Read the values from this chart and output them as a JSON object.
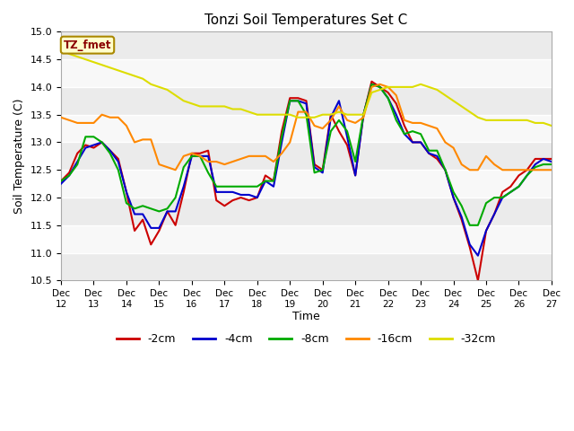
{
  "title": "Tonzi Soil Temperatures Set C",
  "xlabel": "Time",
  "ylabel": "Soil Temperature (C)",
  "ylim": [
    10.5,
    15.0
  ],
  "annotation": "TZ_fmet",
  "legend_labels": [
    "-2cm",
    "-4cm",
    "-8cm",
    "-16cm",
    "-32cm"
  ],
  "legend_colors": [
    "#cc0000",
    "#0000cc",
    "#00aa00",
    "#ff8800",
    "#dddd00"
  ],
  "bg_color": "#ffffff",
  "plot_bg_color": "#ffffff",
  "x_tick_labels": [
    "Dec 12",
    "Dec 13",
    "Dec 14",
    "Dec 15",
    "Dec 16",
    "Dec 17",
    "Dec 18",
    "Dec 19",
    "Dec 20",
    "Dec 21",
    "Dec 22",
    "Dec 23",
    "Dec 24",
    "Dec 25",
    "Dec 26",
    "Dec 27"
  ],
  "band_colors": [
    "#f0f0f0",
    "#e0e0e0"
  ],
  "series": {
    "m2cm": [
      12.3,
      12.45,
      12.8,
      12.95,
      12.9,
      13.0,
      12.85,
      12.7,
      12.1,
      11.4,
      11.6,
      11.15,
      11.4,
      11.75,
      11.5,
      12.1,
      12.8,
      12.8,
      12.85,
      11.95,
      11.85,
      11.95,
      12.0,
      11.95,
      12.0,
      12.4,
      12.3,
      13.2,
      13.8,
      13.8,
      13.75,
      12.6,
      12.5,
      13.5,
      13.2,
      12.95,
      12.4,
      13.5,
      14.1,
      14.0,
      13.9,
      13.7,
      13.3,
      13.0,
      13.0,
      12.8,
      12.7,
      12.5,
      12.0,
      11.6,
      11.1,
      10.5,
      11.4,
      11.7,
      12.1,
      12.2,
      12.4,
      12.5,
      12.7,
      12.7,
      12.7
    ],
    "m4cm": [
      12.25,
      12.4,
      12.65,
      12.9,
      12.95,
      13.0,
      12.85,
      12.65,
      12.1,
      11.7,
      11.7,
      11.45,
      11.45,
      11.75,
      11.75,
      12.2,
      12.75,
      12.75,
      12.75,
      12.1,
      12.1,
      12.1,
      12.05,
      12.05,
      12.0,
      12.3,
      12.2,
      13.0,
      13.75,
      13.75,
      13.7,
      12.55,
      12.45,
      13.45,
      13.75,
      13.1,
      12.4,
      13.5,
      14.05,
      14.0,
      13.8,
      13.5,
      13.15,
      13.0,
      13.0,
      12.8,
      12.75,
      12.5,
      12.0,
      11.65,
      11.15,
      10.95,
      11.4,
      11.7,
      12.0,
      12.1,
      12.2,
      12.4,
      12.6,
      12.7,
      12.65
    ],
    "m8cm": [
      12.3,
      12.4,
      12.6,
      13.1,
      13.1,
      13.0,
      12.8,
      12.5,
      11.9,
      11.8,
      11.85,
      11.8,
      11.75,
      11.8,
      12.0,
      12.55,
      12.75,
      12.75,
      12.45,
      12.2,
      12.2,
      12.2,
      12.2,
      12.2,
      12.2,
      12.3,
      12.3,
      13.1,
      13.75,
      13.75,
      13.5,
      12.45,
      12.5,
      13.2,
      13.4,
      13.2,
      12.65,
      13.5,
      14.05,
      14.0,
      13.8,
      13.4,
      13.15,
      13.2,
      13.15,
      12.85,
      12.85,
      12.5,
      12.1,
      11.85,
      11.5,
      11.5,
      11.9,
      12.0,
      12.0,
      12.1,
      12.2,
      12.4,
      12.55,
      12.6,
      12.6
    ],
    "m16cm": [
      13.45,
      13.4,
      13.35,
      13.35,
      13.35,
      13.5,
      13.45,
      13.45,
      13.3,
      13.0,
      13.05,
      13.05,
      12.6,
      12.55,
      12.5,
      12.75,
      12.8,
      12.75,
      12.65,
      12.65,
      12.6,
      12.65,
      12.7,
      12.75,
      12.75,
      12.75,
      12.65,
      12.8,
      13.0,
      13.55,
      13.55,
      13.3,
      13.25,
      13.4,
      13.65,
      13.4,
      13.35,
      13.45,
      14.0,
      14.05,
      14.0,
      13.85,
      13.4,
      13.35,
      13.35,
      13.3,
      13.25,
      13.0,
      12.9,
      12.6,
      12.5,
      12.5,
      12.75,
      12.6,
      12.5,
      12.5,
      12.5,
      12.5,
      12.5,
      12.5,
      12.5
    ],
    "m32cm": [
      14.7,
      14.6,
      14.55,
      14.5,
      14.45,
      14.4,
      14.35,
      14.3,
      14.25,
      14.2,
      14.15,
      14.05,
      14.0,
      13.95,
      13.85,
      13.75,
      13.7,
      13.65,
      13.65,
      13.65,
      13.65,
      13.6,
      13.6,
      13.55,
      13.5,
      13.5,
      13.5,
      13.5,
      13.5,
      13.45,
      13.45,
      13.45,
      13.5,
      13.5,
      13.55,
      13.5,
      13.5,
      13.5,
      13.9,
      13.95,
      14.0,
      14.0,
      14.0,
      14.0,
      14.05,
      14.0,
      13.95,
      13.85,
      13.75,
      13.65,
      13.55,
      13.45,
      13.4,
      13.4,
      13.4,
      13.4,
      13.4,
      13.4,
      13.35,
      13.35,
      13.3
    ]
  }
}
